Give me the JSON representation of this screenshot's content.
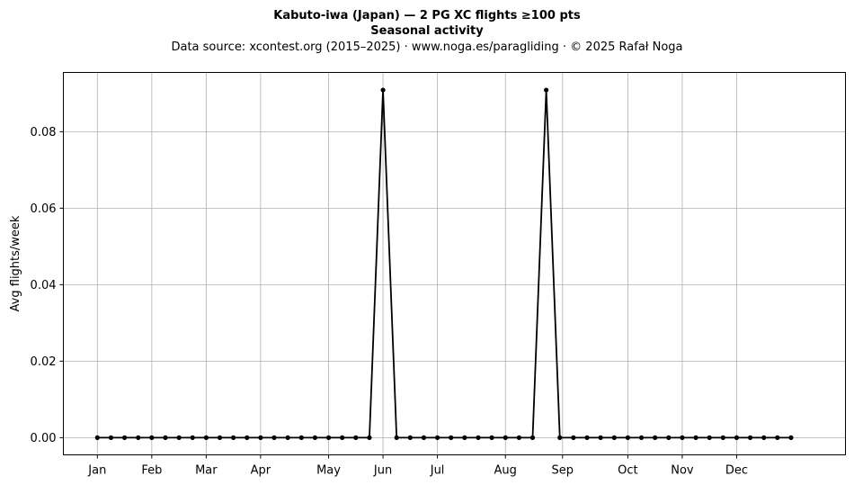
{
  "chart_data": {
    "type": "line",
    "title": "Kabuto-iwa (Japan)  —  2 PG XC flights ≥100 pts",
    "subtitle": "Seasonal activity",
    "source_line": "Data source: xcontest.org (2015–2025)  ·  www.noga.es/paragliding  ·  © 2025 Rafał Noga",
    "xlabel": "",
    "ylabel": "Avg flights/week",
    "xlim": [
      -2.5,
      55
    ],
    "ylim": [
      -0.0045,
      0.0955
    ],
    "grid": true,
    "x_ticks": [
      {
        "label": "Jan",
        "x": 0
      },
      {
        "label": "Feb",
        "x": 4
      },
      {
        "label": "Mar",
        "x": 8
      },
      {
        "label": "Apr",
        "x": 12
      },
      {
        "label": "May",
        "x": 17
      },
      {
        "label": "Jun",
        "x": 21
      },
      {
        "label": "Jul",
        "x": 25
      },
      {
        "label": "Aug",
        "x": 30
      },
      {
        "label": "Sep",
        "x": 34.2
      },
      {
        "label": "Oct",
        "x": 39
      },
      {
        "label": "Nov",
        "x": 43
      },
      {
        "label": "Dec",
        "x": 47
      }
    ],
    "y_ticks": [
      {
        "label": "0.00",
        "y": 0.0
      },
      {
        "label": "0.02",
        "y": 0.02
      },
      {
        "label": "0.04",
        "y": 0.04
      },
      {
        "label": "0.06",
        "y": 0.06
      },
      {
        "label": "0.08",
        "y": 0.08
      }
    ],
    "series": [
      {
        "color": "#000000",
        "x": [
          0,
          1,
          2,
          3,
          4,
          5,
          6,
          7,
          8,
          9,
          10,
          11,
          12,
          13,
          14,
          15,
          16,
          17,
          18,
          19,
          20,
          21,
          22,
          23,
          24,
          25,
          26,
          27,
          28,
          29,
          30,
          31,
          32,
          33,
          34,
          35,
          36,
          37,
          38,
          39,
          40,
          41,
          42,
          43,
          44,
          45,
          46,
          47,
          48,
          49,
          50,
          51
        ],
        "values": [
          0,
          0,
          0,
          0,
          0,
          0,
          0,
          0,
          0,
          0,
          0,
          0,
          0,
          0,
          0,
          0,
          0,
          0,
          0,
          0,
          0,
          0.0909,
          0,
          0,
          0,
          0,
          0,
          0,
          0,
          0,
          0,
          0,
          0,
          0.0909,
          0,
          0,
          0,
          0,
          0,
          0,
          0,
          0,
          0,
          0,
          0,
          0,
          0,
          0,
          0,
          0,
          0,
          0
        ]
      }
    ]
  }
}
